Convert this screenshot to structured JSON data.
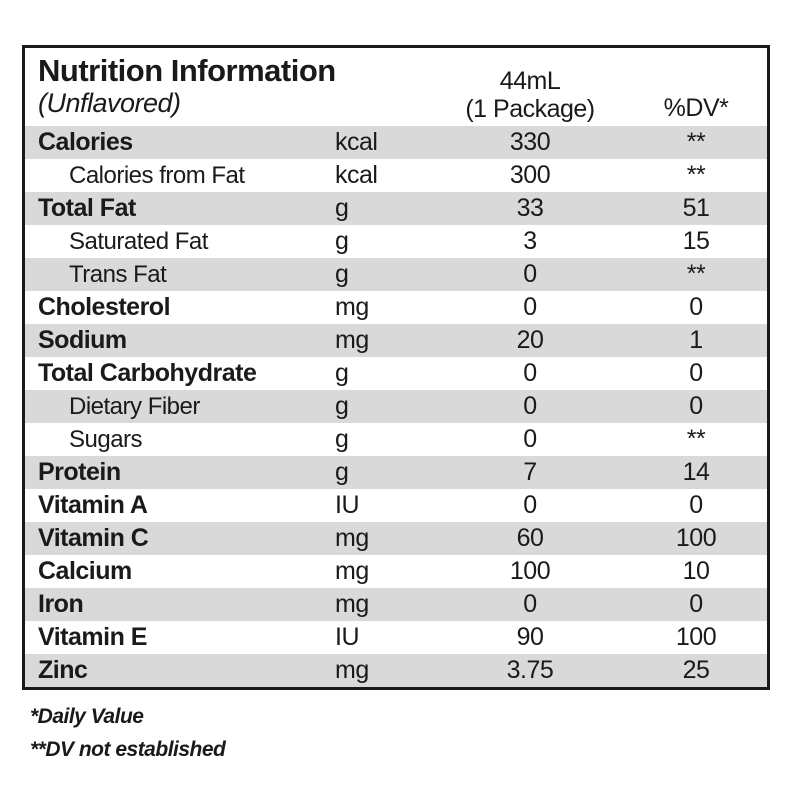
{
  "table": {
    "title": "Nutrition Information",
    "subtitle": "(Unflavored)",
    "columns": {
      "amount_line1": "44mL",
      "amount_line2": "(1 Package)",
      "dv": "%DV*"
    },
    "rows": [
      {
        "label": "Calories",
        "unit": "kcal",
        "amount": "330",
        "dv": "**",
        "bold": true,
        "indent": false,
        "shaded": true
      },
      {
        "label": "Calories from Fat",
        "unit": "kcal",
        "amount": "300",
        "dv": "**",
        "bold": false,
        "indent": true,
        "shaded": false
      },
      {
        "label": "Total Fat",
        "unit": "g",
        "amount": "33",
        "dv": "51",
        "bold": true,
        "indent": false,
        "shaded": true
      },
      {
        "label": "Saturated Fat",
        "unit": "g",
        "amount": "3",
        "dv": "15",
        "bold": false,
        "indent": true,
        "shaded": false
      },
      {
        "label": "Trans Fat",
        "unit": "g",
        "amount": "0",
        "dv": "**",
        "bold": false,
        "indent": true,
        "shaded": true
      },
      {
        "label": "Cholesterol",
        "unit": "mg",
        "amount": "0",
        "dv": "0",
        "bold": true,
        "indent": false,
        "shaded": false
      },
      {
        "label": "Sodium",
        "unit": "mg",
        "amount": "20",
        "dv": "1",
        "bold": true,
        "indent": false,
        "shaded": true
      },
      {
        "label": "Total Carbohydrate",
        "unit": "g",
        "amount": "0",
        "dv": "0",
        "bold": true,
        "indent": false,
        "shaded": false
      },
      {
        "label": "Dietary Fiber",
        "unit": "g",
        "amount": "0",
        "dv": "0",
        "bold": false,
        "indent": true,
        "shaded": true
      },
      {
        "label": "Sugars",
        "unit": "g",
        "amount": "0",
        "dv": "**",
        "bold": false,
        "indent": true,
        "shaded": false
      },
      {
        "label": "Protein",
        "unit": "g",
        "amount": "7",
        "dv": "14",
        "bold": true,
        "indent": false,
        "shaded": true
      },
      {
        "label": "Vitamin A",
        "unit": "IU",
        "amount": "0",
        "dv": "0",
        "bold": true,
        "indent": false,
        "shaded": false
      },
      {
        "label": "Vitamin C",
        "unit": "mg",
        "amount": "60",
        "dv": "100",
        "bold": true,
        "indent": false,
        "shaded": true
      },
      {
        "label": "Calcium",
        "unit": "mg",
        "amount": "100",
        "dv": "10",
        "bold": true,
        "indent": false,
        "shaded": false
      },
      {
        "label": "Iron",
        "unit": "mg",
        "amount": "0",
        "dv": "0",
        "bold": true,
        "indent": false,
        "shaded": true
      },
      {
        "label": "Vitamin E",
        "unit": "IU",
        "amount": "90",
        "dv": "100",
        "bold": true,
        "indent": false,
        "shaded": false
      },
      {
        "label": "Zinc",
        "unit": "mg",
        "amount": "3.75",
        "dv": "25",
        "bold": true,
        "indent": false,
        "shaded": true
      }
    ]
  },
  "footnotes": [
    "*Daily Value",
    "**DV not established"
  ],
  "colors": {
    "shaded_row": "#d9d9d9",
    "border": "#1a1a1a",
    "text": "#1a1a1a",
    "background": "#ffffff"
  }
}
